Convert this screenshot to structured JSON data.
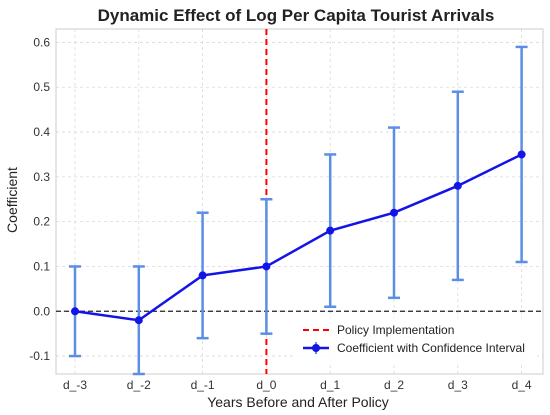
{
  "chart_data": {
    "type": "line",
    "title": "Dynamic Effect of Log Per Capita Tourist Arrivals",
    "xlabel": "Years Before and After Policy",
    "ylabel": "Coefficient",
    "categories": [
      "d_-3",
      "d_-2",
      "d_-1",
      "d_0",
      "d_1",
      "d_2",
      "d_3",
      "d_4"
    ],
    "series": [
      {
        "name": "Coefficient with Confidence Interval",
        "values": [
          0.0,
          -0.02,
          0.08,
          0.1,
          0.18,
          0.22,
          0.28,
          0.35
        ],
        "lower": [
          -0.1,
          -0.14,
          -0.06,
          -0.05,
          0.01,
          0.03,
          0.07,
          0.11
        ],
        "upper": [
          0.1,
          0.1,
          0.22,
          0.25,
          0.35,
          0.41,
          0.49,
          0.59
        ],
        "color": "#1414e6",
        "errorbar_color": "#5b8fe6"
      }
    ],
    "ylim": [
      -0.14,
      0.63
    ],
    "yticks": [
      -0.1,
      0.0,
      0.1,
      0.2,
      0.3,
      0.4,
      0.5,
      0.6
    ],
    "ytick_labels": [
      "-0.1",
      "0.0",
      "0.1",
      "0.2",
      "0.3",
      "0.4",
      "0.5",
      "0.6"
    ],
    "reference_lines": {
      "horizontal": {
        "y": 0,
        "style": "dashed",
        "color": "#222222"
      },
      "vertical": {
        "category": "d_0",
        "style": "dashed",
        "color": "#ff0000",
        "label": "Policy Implementation"
      }
    },
    "grid": true,
    "legend": {
      "placement": "bottom-right",
      "entries": [
        "Policy Implementation",
        "Coefficient with Confidence Interval"
      ]
    }
  }
}
